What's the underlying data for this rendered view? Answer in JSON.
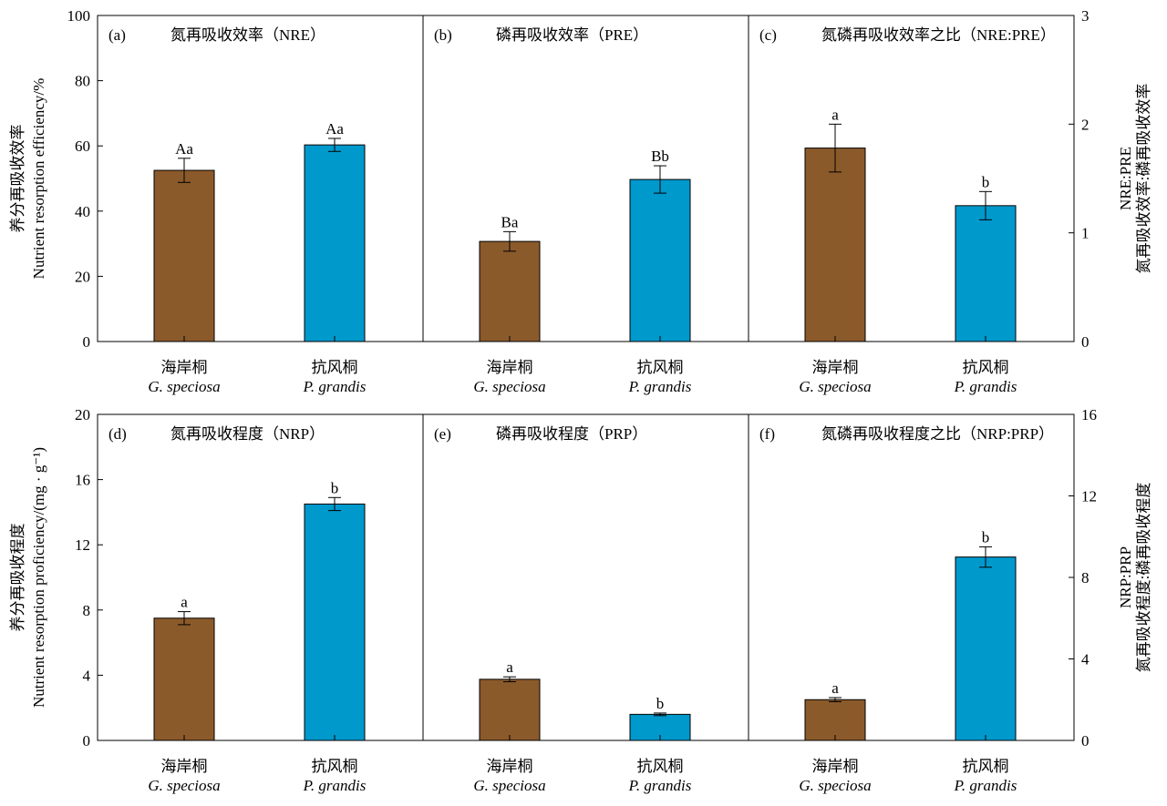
{
  "colors": {
    "G. speciosa": "#8B5A2B",
    "P. grandis": "#0099CC",
    "axis": "#000000"
  },
  "chart_data": [
    {
      "type": "bar",
      "row": "top",
      "tag": "(a)",
      "title": "氮再吸收效率（NRE）",
      "axis": "left",
      "categories_cn": [
        "海岸桐",
        "抗风桐"
      ],
      "categories": [
        "G. speciosa",
        "P. grandis"
      ],
      "values": [
        52.5,
        60.3
      ],
      "errors": [
        3.7,
        2.0
      ],
      "letters": [
        "Aa",
        "Aa"
      ]
    },
    {
      "type": "bar",
      "row": "top",
      "tag": "(b)",
      "title": "磷再吸收效率（PRE）",
      "axis": "left",
      "categories_cn": [
        "海岸桐",
        "抗风桐"
      ],
      "categories": [
        "G. speciosa",
        "P. grandis"
      ],
      "values": [
        30.7,
        49.7
      ],
      "errors": [
        3.0,
        4.2
      ],
      "letters": [
        "Ba",
        "Bb"
      ]
    },
    {
      "type": "bar",
      "row": "top",
      "tag": "(c)",
      "title": "氮磷再吸收效率之比（NRE:PRE）",
      "axis": "right",
      "categories_cn": [
        "海岸桐",
        "抗风桐"
      ],
      "categories": [
        "G. speciosa",
        "P. grandis"
      ],
      "values": [
        1.78,
        1.25
      ],
      "errors": [
        0.22,
        0.13
      ],
      "letters": [
        "a",
        "b"
      ]
    },
    {
      "type": "bar",
      "row": "bottom",
      "tag": "(d)",
      "title": "氮再吸收程度（NRP）",
      "axis": "left",
      "categories_cn": [
        "海岸桐",
        "抗风桐"
      ],
      "categories": [
        "G. speciosa",
        "P. grandis"
      ],
      "values": [
        7.5,
        14.5
      ],
      "errors": [
        0.4,
        0.4
      ],
      "letters": [
        "a",
        "b"
      ]
    },
    {
      "type": "bar",
      "row": "bottom",
      "tag": "(e)",
      "title": "磷再吸收程度（PRP）",
      "axis": "left",
      "categories_cn": [
        "海岸桐",
        "抗风桐"
      ],
      "categories": [
        "G. speciosa",
        "P. grandis"
      ],
      "values": [
        3.75,
        1.6
      ],
      "errors": [
        0.15,
        0.08
      ],
      "letters": [
        "a",
        "b"
      ]
    },
    {
      "type": "bar",
      "row": "bottom",
      "tag": "(f)",
      "title": "氮磷再吸收程度之比（NRP:PRP）",
      "axis": "right",
      "categories_cn": [
        "海岸桐",
        "抗风桐"
      ],
      "categories": [
        "G. speciosa",
        "P. grandis"
      ],
      "values": [
        2.0,
        9.0
      ],
      "errors": [
        0.1,
        0.5
      ],
      "letters": [
        "a",
        "b"
      ]
    }
  ],
  "axes": {
    "top": {
      "left": {
        "ylim": [
          0,
          100
        ],
        "ticks": [
          0,
          20,
          40,
          60,
          80,
          100
        ],
        "label_cn": "养分再吸收效率",
        "label": "Nutrient resorption efficiency/%"
      },
      "right": {
        "ylim": [
          0,
          3
        ],
        "ticks": [
          0,
          1,
          2,
          3
        ],
        "label": "NRE:PRE",
        "label_cn": "氮再吸收效率:磷再吸收效率"
      }
    },
    "bottom": {
      "left": {
        "ylim": [
          0,
          20
        ],
        "ticks": [
          0,
          4,
          8,
          12,
          16,
          20
        ],
        "label_cn": "养分再吸收程度",
        "label": "Nutrient resorption proficiency/(mg · g⁻¹)"
      },
      "right": {
        "ylim": [
          0,
          16
        ],
        "ticks": [
          0,
          4,
          8,
          12,
          16
        ],
        "label": "NRP:PRP",
        "label_cn": "氮再吸收程度:磷再吸收程度"
      }
    }
  }
}
